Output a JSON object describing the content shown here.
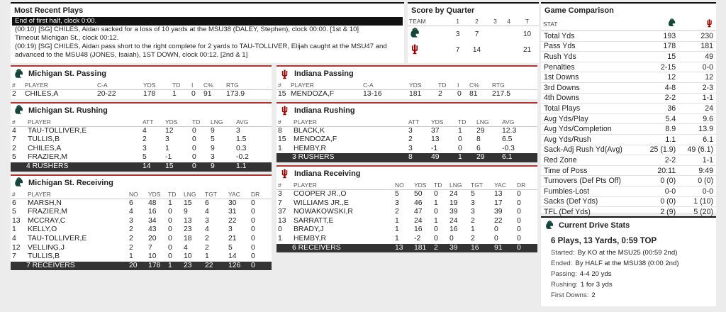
{
  "plays": {
    "title": "Most Recent Plays",
    "items": [
      "End of first half, clock 0:00.",
      "(00:10) [SG] CHILES, Aidan sacked for a loss of 10 yards at the MSU38 (DALEY, Stephen), clock 00:00. [1st & 10]",
      "Timeout Michigan St., clock 00:12.",
      "(00:19) [SG] CHILES, Aidan pass short to the right complete for 2 yards to TAU-TOLLIVER, Elijah caught at the MSU47 and advanced to the MSU48 (JONES, Isaiah), 1ST DOWN, clock 00:12. [2nd & 1]"
    ]
  },
  "score": {
    "title": "Score by Quarter",
    "headers": [
      "TEAM",
      "1",
      "2",
      "3",
      "4",
      "T"
    ],
    "rows": [
      {
        "quarters": [
          3,
          7
        ],
        "total": 10
      },
      {
        "quarters": [
          7,
          14
        ],
        "total": 21
      }
    ]
  },
  "comparison": {
    "title": "Game Comparison",
    "header": "STAT",
    "rows": [
      [
        "Total Yds",
        193,
        230
      ],
      [
        "Pass Yds",
        178,
        181
      ],
      [
        "Rush Yds",
        15,
        49
      ],
      [
        "Penalties",
        "2-15",
        "0-0"
      ],
      [
        "1st Downs",
        12,
        12
      ],
      [
        "3rd Downs",
        "4-8",
        "2-3"
      ],
      [
        "4th Downs",
        "2-2",
        "1-1"
      ],
      [
        "Total Plays",
        36,
        24
      ],
      [
        "Avg Yds/Play",
        5.4,
        9.6
      ],
      [
        "Avg Yds/Completion",
        8.9,
        13.9
      ],
      [
        "Avg Yds/Rush",
        1.1,
        6.1
      ],
      [
        "Sack-Adj Rush Yd(Avg)",
        "25 (1.9)",
        "49 (6.1)"
      ],
      [
        "Red Zone",
        "2-2",
        "1-1"
      ],
      [
        "Time of Poss",
        "20:11",
        "9:49"
      ],
      [
        "Turnovers (Def Pts Off)",
        "0 (0)",
        "0 (0)"
      ],
      [
        "Fumbles-Lost",
        "0-0",
        "0-0"
      ],
      [
        "Sacks (Def Yds)",
        "0 (0)",
        "1 (10)"
      ],
      [
        "TFL (Def Yds)",
        "2 (9)",
        "5 (20)"
      ]
    ]
  },
  "drive": {
    "title": "Current Drive Stats",
    "headline": "6 Plays, 13 Yards, 0:59 TOP",
    "lines": [
      [
        "Started:",
        "By KO at the MSU25 (00:59 2nd)"
      ],
      [
        "Ended:",
        "By HALF at the MSU38 (0:00 2nd)"
      ],
      [
        "Passing:",
        "4-4 20 yds"
      ],
      [
        "Rushing:",
        "1 for 3 yds"
      ],
      [
        "First Downs:",
        2
      ]
    ]
  },
  "msu_passing": {
    "title": "Michigan St. Passing",
    "headers": [
      "#",
      "PLAYER",
      "C-A",
      "YDS",
      "TD",
      "I",
      "C%",
      "RTG"
    ],
    "rows": [
      [
        2,
        "CHILES,A",
        "20-22",
        178,
        1,
        0,
        91,
        173.9
      ]
    ]
  },
  "msu_rushing": {
    "title": "Michigan St. Rushing",
    "headers": [
      "#",
      "PLAYER",
      "ATT",
      "YDS",
      "TD",
      "LNG",
      "AVG"
    ],
    "rows": [
      [
        4,
        "TAU-TOLLIVER,E",
        4,
        12,
        0,
        9,
        3
      ],
      [
        7,
        "TULLIS,B",
        2,
        3,
        0,
        5,
        1.5
      ],
      [
        2,
        "CHILES,A",
        3,
        1,
        0,
        9,
        0.3
      ],
      [
        5,
        "FRAZIER,M",
        5,
        -1,
        0,
        3,
        -0.2
      ]
    ],
    "total": [
      "4 RUSHERS",
      14,
      15,
      0,
      9,
      1.1
    ]
  },
  "msu_receiving": {
    "title": "Michigan St. Receiving",
    "headers": [
      "#",
      "PLAYER",
      "NO",
      "YDS",
      "TD",
      "LNG",
      "TGT",
      "YAC",
      "DR"
    ],
    "rows": [
      [
        6,
        "MARSH,N",
        6,
        48,
        1,
        15,
        6,
        30,
        0
      ],
      [
        5,
        "FRAZIER,M",
        4,
        16,
        0,
        9,
        4,
        31,
        0
      ],
      [
        13,
        "MCCRAY,C",
        3,
        34,
        0,
        13,
        3,
        22,
        0
      ],
      [
        1,
        "KELLY,O",
        2,
        43,
        0,
        23,
        4,
        3,
        0
      ],
      [
        4,
        "TAU-TOLLIVER,E",
        2,
        20,
        0,
        18,
        2,
        21,
        0
      ],
      [
        12,
        "VELLING,J",
        2,
        7,
        0,
        4,
        2,
        5,
        0
      ],
      [
        7,
        "TULLIS,B",
        1,
        10,
        0,
        10,
        1,
        14,
        0
      ]
    ],
    "total": [
      "7 RECEIVERS",
      20,
      178,
      1,
      23,
      22,
      126,
      0
    ]
  },
  "iu_passing": {
    "title": "Indiana Passing",
    "headers": [
      "#",
      "PLAYER",
      "C-A",
      "YDS",
      "TD",
      "I",
      "C%",
      "RTG"
    ],
    "rows": [
      [
        15,
        "MENDOZA,F",
        "13-16",
        181,
        2,
        0,
        81,
        217.5
      ]
    ]
  },
  "iu_rushing": {
    "title": "Indiana Rushing",
    "headers": [
      "#",
      "PLAYER",
      "ATT",
      "YDS",
      "TD",
      "LNG",
      "AVG"
    ],
    "rows": [
      [
        8,
        "BLACK,K",
        3,
        37,
        1,
        29,
        12.3
      ],
      [
        15,
        "MENDOZA,F",
        2,
        13,
        0,
        8,
        6.5
      ],
      [
        1,
        "HEMBY,R",
        3,
        -1,
        0,
        6,
        -0.3
      ]
    ],
    "total": [
      "3 RUSHERS",
      8,
      49,
      1,
      29,
      6.1
    ]
  },
  "iu_receiving": {
    "title": "Indiana Receiving",
    "headers": [
      "#",
      "PLAYER",
      "NO",
      "YDS",
      "TD",
      "LNG",
      "TGT",
      "YAC",
      "DR"
    ],
    "rows": [
      [
        3,
        "COOPER JR.,O",
        5,
        50,
        0,
        24,
        5,
        13,
        0
      ],
      [
        7,
        "WILLIAMS JR.,E",
        3,
        46,
        1,
        19,
        3,
        17,
        0
      ],
      [
        37,
        "NOWAKOWSKI,R",
        2,
        47,
        0,
        39,
        3,
        39,
        0
      ],
      [
        13,
        "SARRATT,E",
        1,
        24,
        1,
        24,
        2,
        22,
        0
      ],
      [
        0,
        "BRADY,J",
        1,
        16,
        0,
        16,
        1,
        0,
        0
      ],
      [
        1,
        "HEMBY,R",
        1,
        -2,
        0,
        0,
        2,
        0,
        0
      ]
    ],
    "total": [
      "6 RECEIVERS",
      13,
      181,
      2,
      39,
      16,
      91,
      0
    ]
  }
}
